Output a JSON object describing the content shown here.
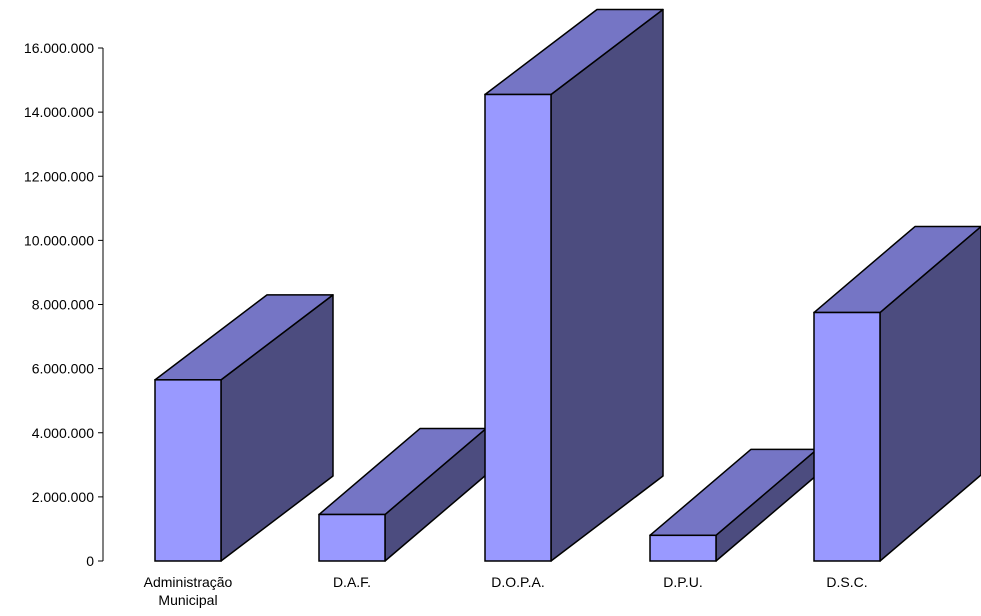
{
  "chart_data": {
    "type": "bar",
    "categories": [
      "Administração Municipal",
      "D.A.F.",
      "D.O.P.A.",
      "D.P.U.",
      "D.S.C."
    ],
    "category_label_lines": [
      [
        "Administração",
        "Municipal"
      ],
      [
        "D.A.F."
      ],
      [
        "D.O.P.A."
      ],
      [
        "D.P.U."
      ],
      [
        "D.S.C."
      ]
    ],
    "values": [
      5650000,
      1450000,
      14550000,
      800000,
      7750000
    ],
    "y_ticks": [
      0,
      2000000,
      4000000,
      6000000,
      8000000,
      10000000,
      12000000,
      14000000,
      16000000
    ],
    "y_tick_labels": [
      "0",
      "2.000.000",
      "4.000.000",
      "6.000.000",
      "8.000.000",
      "10.000.000",
      "12.000.000",
      "14.000.000",
      "16.000.000"
    ],
    "ylim": [
      0,
      16000000
    ],
    "grid": false,
    "style": "3d-bar",
    "colors": {
      "front": "#9999ff",
      "top": "#7575c5",
      "side": "#4c4c7f",
      "edge": "#000000"
    }
  }
}
